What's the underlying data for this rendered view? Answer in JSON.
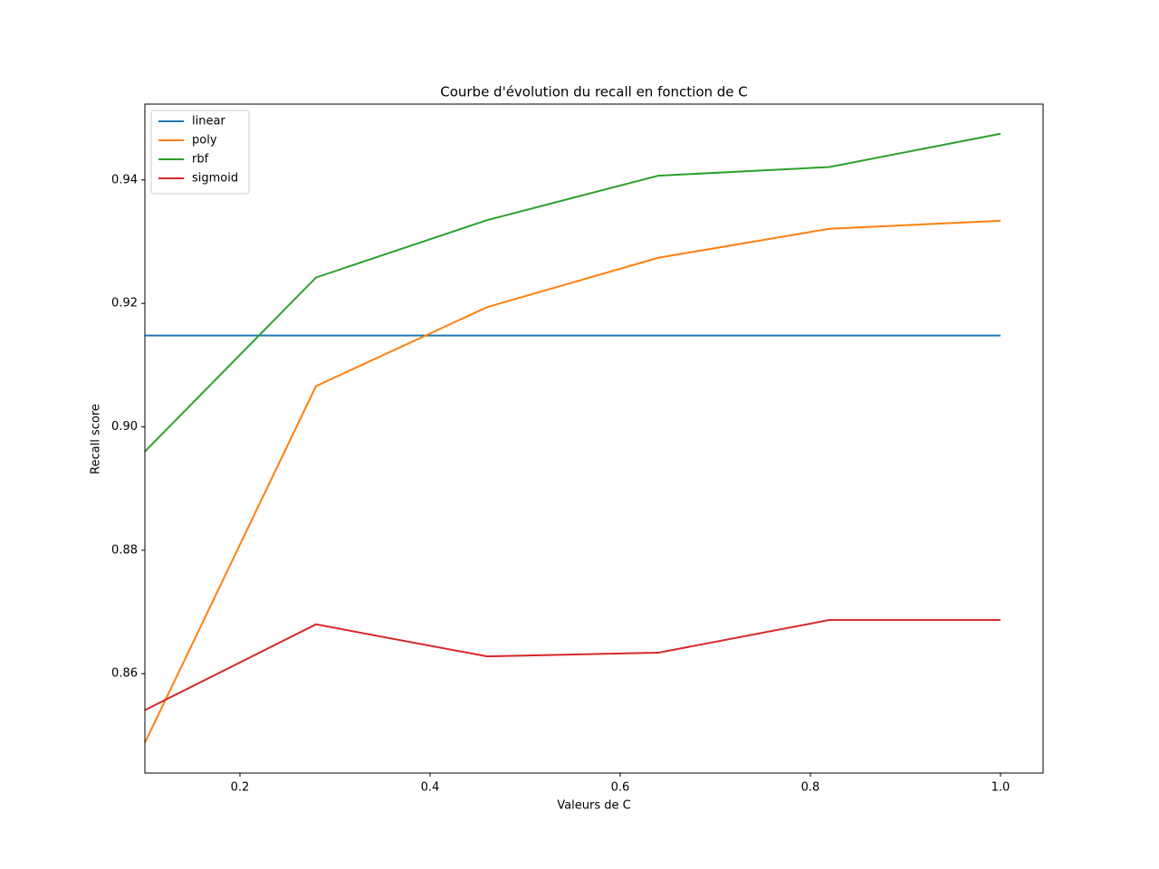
{
  "chart_data": {
    "type": "line",
    "title": "Courbe d'évolution du recall en fonction de C",
    "xlabel": "Valeurs de C",
    "ylabel": "Recall score",
    "x": [
      0.1,
      0.28,
      0.46,
      0.64,
      0.82,
      1.0
    ],
    "series": [
      {
        "name": "linear",
        "color": "#1f77b4",
        "values": [
          0.9148,
          0.9148,
          0.9148,
          0.9148,
          0.9148,
          0.9148
        ]
      },
      {
        "name": "poly",
        "color": "#ff7f0e",
        "values": [
          0.8488,
          0.9066,
          0.9194,
          0.9274,
          0.9321,
          0.9334
        ]
      },
      {
        "name": "rbf",
        "color": "#2ca02c",
        "values": [
          0.896,
          0.9242,
          0.9335,
          0.9407,
          0.9421,
          0.9475
        ]
      },
      {
        "name": "sigmoid",
        "color": "#d62728",
        "values": [
          0.8541,
          0.868,
          0.8628,
          0.8634,
          0.8687,
          0.8687
        ]
      }
    ],
    "xlim": [
      0.1,
      1.0448
    ],
    "ylim": [
      0.8439,
      0.9523
    ],
    "xticks": [
      0.2,
      0.4,
      0.6,
      0.8,
      {
        "value": 1,
        "label": "1.0"
      }
    ],
    "yticks": [
      0.86,
      0.88,
      {
        "value": 0.9,
        "label": "0.90"
      },
      0.92,
      0.94
    ],
    "grid": false,
    "legend": "upper-left"
  }
}
